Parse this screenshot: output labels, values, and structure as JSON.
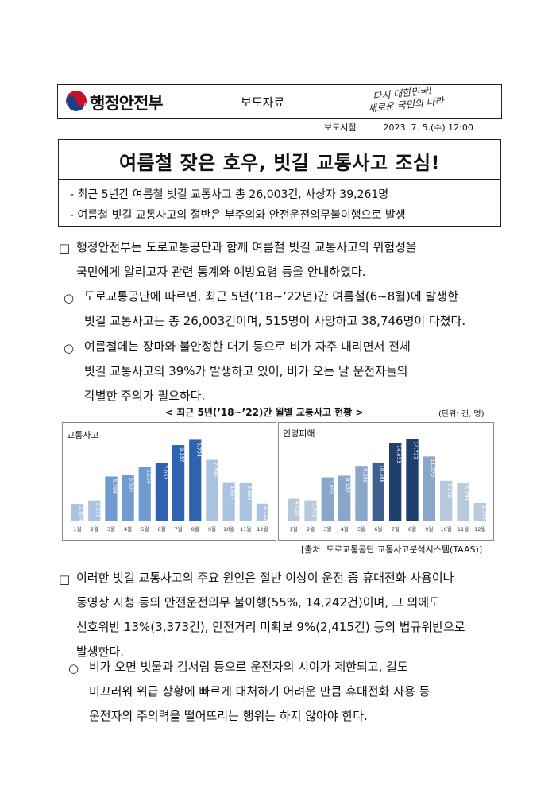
{
  "header": {
    "ministry": "행정안전부",
    "release_label": "보도자료",
    "slogan_line1": "다시 대한민국!",
    "slogan_line2": "새로운 국민의 나라",
    "timing_label": "보도시점",
    "timing_value": "2023. 7. 5.(수) 12:00"
  },
  "title_box": {
    "headline": "여름철 잦은 호우, 빗길 교통사고 조심!",
    "sub1": "- 최근 5년간 여름철 빗길 교통사고 총 26,003건, 사상자 39,261명",
    "sub2": "- 여름철 빗길 교통사고의 절반은 부주의와 안전운전의무불이행으로 발생"
  },
  "body": {
    "p1_bullet": "□",
    "p1_line1": "행정안전부는 도로교통공단과 함께 여름철 빗길 교통사고의 위험성을",
    "p1_line2": "국민에게 알리고자 관련 통계와 예방요령 등을 안내하였다.",
    "p2_bullet": "○",
    "p2_line1": "도로교통공단에 따르면, 최근 5년(’18~’22년)간 여름철(6~8월)에 발생한",
    "p2_line2": "빗길 교통사고는 총 26,003건이며, 515명이 사망하고 38,746명이 다쳤다.",
    "p3_bullet": "○",
    "p3_line1": "여름철에는 장마와 불안정한 대기 등으로 비가 자주 내리면서 전체",
    "p3_line2": "빗길 교통사고의 39%가 발생하고 있어, 비가 오는 날 운전자들의",
    "p3_line3": "각별한 주의가 필요하다.",
    "p4_bullet": "□",
    "p4_line1": "이러한 빗길 교통사고의 주요 원인은 절반 이상이 운전 중 휴대전화 사용이나",
    "p4_line2": "동영상 시청 등의 안전운전의무 불이행(55%, 14,242건)이며, 그 외에도",
    "p4_line3": "신호위반 13%(3,373건), 안전거리 미확보 9%(2,415건) 등의 법규위반으로",
    "p4_line4": "발생한다.",
    "p5_bullet": "○",
    "p5_line1": "비가 오면 빗물과 김서림 등으로 운전자의 시야가 제한되고, 길도",
    "p5_line2": "미끄러워 위급 상황에 빠르게 대처하기 어려운 만큼 휴대전화 사용 등",
    "p5_line3": "운전자의 주의력을 떨어뜨리는 행위는 하지 않아야 한다."
  },
  "chart_section": {
    "title": "< 최근 5년(’18~’22)간 월별 교통사고 현황 >",
    "unit": "(단위: 건, 명)",
    "source": "[출처: 도로교통공단 교통사고분석시스템(TAAS)]"
  },
  "chart_data": [
    {
      "type": "bar",
      "title": "교통사고",
      "categories": [
        "1월",
        "2월",
        "3월",
        "4월",
        "5월",
        "6월",
        "7월",
        "8월",
        "9월",
        "10월",
        "11월",
        "12월"
      ],
      "values": [
        2094,
        2515,
        5398,
        5537,
        6550,
        7052,
        9157,
        9794,
        7396,
        4617,
        4586,
        2122
      ],
      "value_labels": [
        "2,094",
        "2,515",
        "5,398",
        "5,537",
        "6,550",
        "7,052",
        "9,157",
        "9,794",
        "7,396",
        "4,617",
        "4,586",
        "2,122"
      ],
      "colors": [
        "#a9c3e0",
        "#a9c3e0",
        "#6f9bd0",
        "#6f9bd0",
        "#6f9bd0",
        "#2f63b0",
        "#2f63b0",
        "#2f63b0",
        "#a9c3e0",
        "#a9c3e0",
        "#a9c3e0",
        "#a9c3e0"
      ],
      "ylim": [
        0,
        10500
      ]
    },
    {
      "type": "bar",
      "title": "인명피해",
      "categories": [
        "1월",
        "2월",
        "3월",
        "4월",
        "5월",
        "6월",
        "7월",
        "8월",
        "9월",
        "10월",
        "11월",
        "12월"
      ],
      "values": [
        4033,
        3742,
        7859,
        8157,
        9898,
        10506,
        14033,
        14722,
        11570,
        7272,
        6799,
        3277
      ],
      "value_labels": [
        "4,033",
        "3,742",
        "7,859",
        "8,157",
        "9,898",
        "10,506",
        "14,033",
        "14,722",
        "11,570",
        "7,272",
        "6,799",
        "3,277"
      ],
      "colors": [
        "#b9c9dc",
        "#b9c9dc",
        "#8aa6c8",
        "#8aa6c8",
        "#8aa6c8",
        "#3f5f8f",
        "#1f3f6f",
        "#1f3f6f",
        "#8aa6c8",
        "#b9c9dc",
        "#b9c9dc",
        "#b9c9dc"
      ],
      "ylim": [
        0,
        15600
      ]
    }
  ]
}
